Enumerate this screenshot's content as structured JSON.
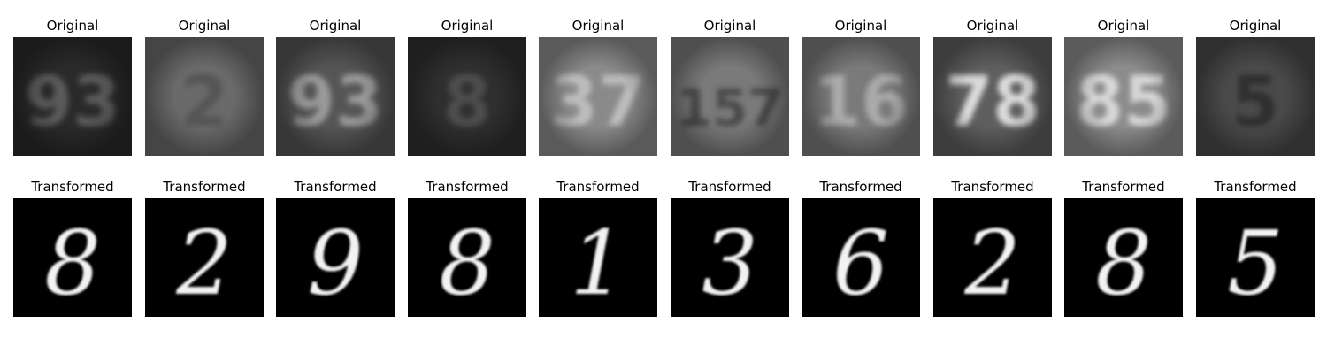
{
  "rows": {
    "original_title": "Original",
    "transformed_title": "Transformed"
  },
  "panels": [
    {
      "original_glyph": "93",
      "original_bg": "#2a2a2a",
      "original_fg": "#5a5a5a",
      "transformed_glyph": "8"
    },
    {
      "original_glyph": "2",
      "original_bg": "#6a6a6a",
      "original_fg": "#545454",
      "transformed_glyph": "2"
    },
    {
      "original_glyph": "93",
      "original_bg": "#555555",
      "original_fg": "#9a9a9a",
      "transformed_glyph": "9"
    },
    {
      "original_glyph": "8",
      "original_bg": "#2f2f2f",
      "original_fg": "#4e4e4e",
      "transformed_glyph": "8"
    },
    {
      "original_glyph": "37",
      "original_bg": "#8a8a8a",
      "original_fg": "#bdbdbd",
      "transformed_glyph": "1"
    },
    {
      "original_glyph": "157",
      "original_bg": "#7a7a7a",
      "original_fg": "#4a4a4a",
      "transformed_glyph": "3"
    },
    {
      "original_glyph": "16",
      "original_bg": "#7a7a7a",
      "original_fg": "#aaaaaa",
      "transformed_glyph": "6"
    },
    {
      "original_glyph": "78",
      "original_bg": "#5e5e5e",
      "original_fg": "#dcdcdc",
      "transformed_glyph": "2"
    },
    {
      "original_glyph": "85",
      "original_bg": "#8c8c8c",
      "original_fg": "#d8d8d8",
      "transformed_glyph": "8"
    },
    {
      "original_glyph": "5",
      "original_bg": "#4a4a4a",
      "original_fg": "#2e2e2e",
      "transformed_glyph": "5"
    }
  ]
}
